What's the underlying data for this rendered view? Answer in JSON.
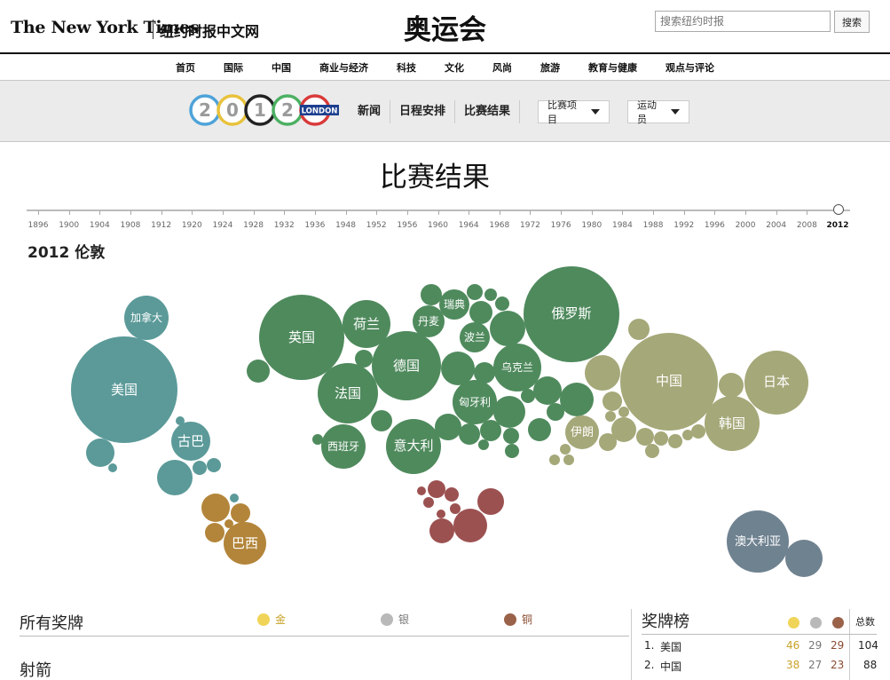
{
  "header": {
    "masthead_en": "The New York Times",
    "masthead_cn": "纽约时报中文网",
    "page_title": "奥运会",
    "search_placeholder": "搜索纽约时报",
    "search_button": "搜索"
  },
  "nav": [
    "首页",
    "国际",
    "中国",
    "商业与经济",
    "科技",
    "文化",
    "风尚",
    "旅游",
    "教育与健康",
    "观点与评论"
  ],
  "olympics_bar": {
    "logo_digits": [
      "2",
      "0",
      "1",
      "2"
    ],
    "logo_badge": "LONDON",
    "links": [
      "新闻",
      "日程安排",
      "比赛结果"
    ],
    "dropdown_events": "比赛项目",
    "dropdown_athletes": "运动员"
  },
  "results": {
    "title": "比赛结果",
    "years": [
      "1896",
      "1900",
      "1904",
      "1908",
      "1912",
      "1920",
      "1924",
      "1928",
      "1932",
      "1936",
      "1948",
      "1952",
      "1956",
      "1960",
      "1964",
      "1968",
      "1972",
      "1976",
      "1980",
      "1984",
      "1988",
      "1992",
      "1996",
      "2000",
      "2004",
      "2008",
      "2012"
    ],
    "selected_year": "2012",
    "edition_label": "2012 伦敦"
  },
  "bubble_labels": {
    "canada": "加拿大",
    "usa": "美国",
    "cuba": "古巴",
    "brazil": "巴西",
    "uk": "英国",
    "netherlands": "荷兰",
    "germany": "德国",
    "france": "法国",
    "spain": "西班牙",
    "italy": "意大利",
    "denmark": "丹麦",
    "sweden": "瑞典",
    "poland": "波兰",
    "ukraine": "乌克兰",
    "hungary": "匈牙利",
    "russia": "俄罗斯",
    "iran": "伊朗",
    "china": "中国",
    "japan": "日本",
    "korea": "韩国",
    "australia": "澳大利亚"
  },
  "colors": {
    "americas": "#5b9a99",
    "south_america": "#b3853a",
    "europe": "#4f8a5d",
    "africa": "#9c5151",
    "asia": "#a5a878",
    "oceania": "#6f8290",
    "gold": "#f0d458",
    "silver": "#b9b9b9",
    "bronze": "#9a6249"
  },
  "medals": {
    "section_title": "所有奖牌",
    "legend_gold": "金",
    "legend_silver": "银",
    "legend_bronze": "铜",
    "sport_heading": "射箭"
  },
  "medal_table": {
    "title": "奖牌榜",
    "total_header": "总数",
    "rows": [
      {
        "rank": "1.",
        "country": "美国",
        "gold": "46",
        "silver": "29",
        "bronze": "29",
        "total": "104"
      },
      {
        "rank": "2.",
        "country": "中国",
        "gold": "38",
        "silver": "27",
        "bronze": "23",
        "total": "88"
      }
    ]
  }
}
